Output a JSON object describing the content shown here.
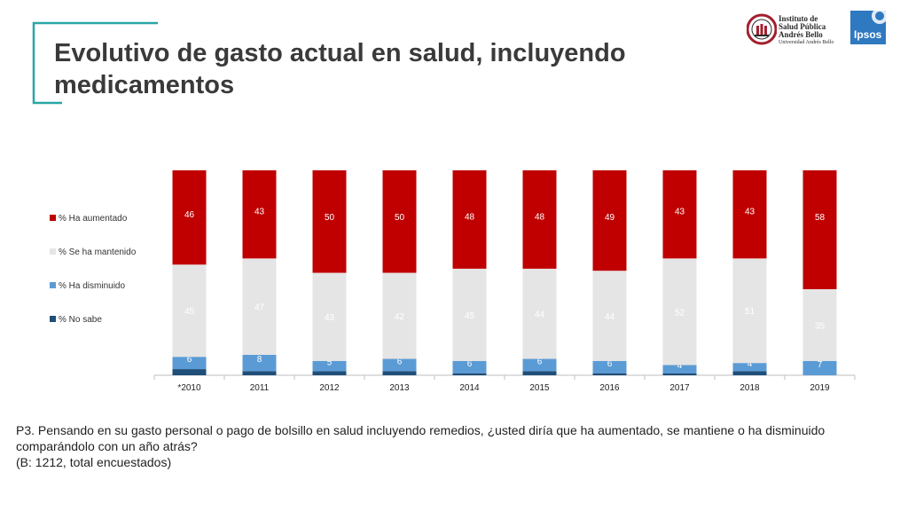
{
  "header": {
    "title": "Evolutivo de gasto actual en salud, incluyendo medicamentos",
    "logos": {
      "isp_line1": "Instituto de",
      "isp_line2": "Salud Pública",
      "isp_line3": "Andrés Bello",
      "isp_sub": "Universidad Andrés Bello",
      "ipsos": "Ipsos"
    }
  },
  "colors": {
    "accent_teal": "#2aa6a6",
    "aumentado": "#c00000",
    "mantenido": "#e5e5e5",
    "disminuido": "#5b9bd5",
    "no_sabe": "#1f4e79",
    "ipsos_blue": "#2f79c0"
  },
  "chart_data": {
    "type": "bar",
    "stacked": true,
    "categories": [
      "*2010",
      "2011",
      "2012",
      "2013",
      "2014",
      "2015",
      "2016",
      "2017",
      "2018",
      "2019"
    ],
    "series": [
      {
        "name": "% No sabe",
        "values": [
          3,
          2,
          2,
          2,
          1,
          2,
          1,
          1,
          2,
          0
        ]
      },
      {
        "name": "% Ha disminuido",
        "values": [
          6,
          8,
          5,
          6,
          6,
          6,
          6,
          4,
          4,
          7
        ]
      },
      {
        "name": "% Se ha mantenido",
        "values": [
          45,
          47,
          43,
          42,
          45,
          44,
          44,
          52,
          51,
          35
        ]
      },
      {
        "name": "% Ha aumentado",
        "values": [
          46,
          43,
          50,
          50,
          48,
          48,
          49,
          43,
          43,
          58
        ]
      }
    ],
    "ylim": [
      0,
      100
    ],
    "legend_position": "left",
    "show_labels": [
      "% Ha disminuido",
      "% Se ha mantenido",
      "% Ha aumentado"
    ],
    "grid": false
  },
  "footnote": {
    "question": "P3. Pensando en su gasto personal o pago de bolsillo en salud incluyendo remedios, ¿usted diría que ha aumentado, se mantiene o ha disminuido comparándolo con un año atrás?",
    "base": "(B: 1212, total encuestados)"
  }
}
